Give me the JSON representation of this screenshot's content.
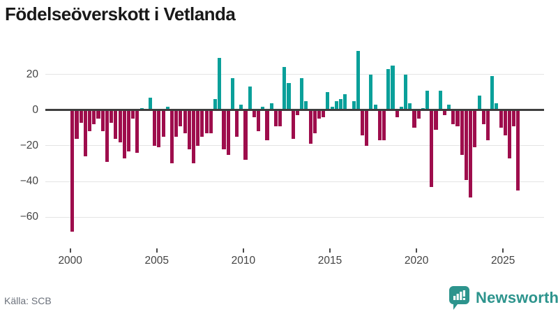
{
  "title": "Födelseöverskott i Vetlanda",
  "source": "Källa: SCB",
  "logo": {
    "text": "Newsworthy"
  },
  "chart_data": {
    "type": "bar",
    "title": "Födelseöverskott i Vetlanda",
    "frequency": "quarterly",
    "start_year": 2000,
    "values": [
      -68,
      -16,
      -7,
      -26,
      -12,
      -8,
      -5,
      -12,
      -29,
      -7,
      -16,
      -18,
      -27,
      -23,
      -5,
      -24,
      1,
      0,
      7,
      -20,
      -21,
      -15,
      2,
      -30,
      -15,
      -9,
      -13,
      -22,
      -30,
      -20,
      -15,
      -13,
      -13,
      6,
      29,
      -22,
      -25,
      18,
      -15,
      3,
      -28,
      13,
      -4,
      -12,
      2,
      -17,
      4,
      -9,
      -9,
      24,
      15,
      -16,
      -3,
      18,
      5,
      -19,
      -13,
      -5,
      -4,
      10,
      2,
      5,
      6,
      9,
      0,
      5,
      33,
      -14,
      -20,
      20,
      3,
      -17,
      -17,
      23,
      25,
      -4,
      2,
      20,
      4,
      -10,
      -5,
      1,
      11,
      -43,
      -11,
      11,
      -3,
      3,
      -8,
      -9,
      -25,
      -39,
      -49,
      -21,
      8,
      -8,
      -17,
      19,
      4,
      -10,
      -14,
      -27,
      -9,
      -45
    ],
    "y_ticks": [
      20,
      0,
      -20,
      -40,
      -60
    ],
    "y_tick_labels": [
      "20",
      "0",
      "−20",
      "−40",
      "−60"
    ],
    "x_ticks": [
      2000,
      2005,
      2010,
      2015,
      2020,
      2025
    ],
    "x_tick_labels": [
      "2000",
      "2005",
      "2010",
      "2015",
      "2020",
      "2025"
    ],
    "ylim": [
      -73,
      36
    ],
    "grid": true,
    "legend": false,
    "colors": {
      "positive": "#0aa09a",
      "negative": "#9e0d4c",
      "axis": "#3e3e3e",
      "gridline": "#e4e4e4"
    }
  }
}
